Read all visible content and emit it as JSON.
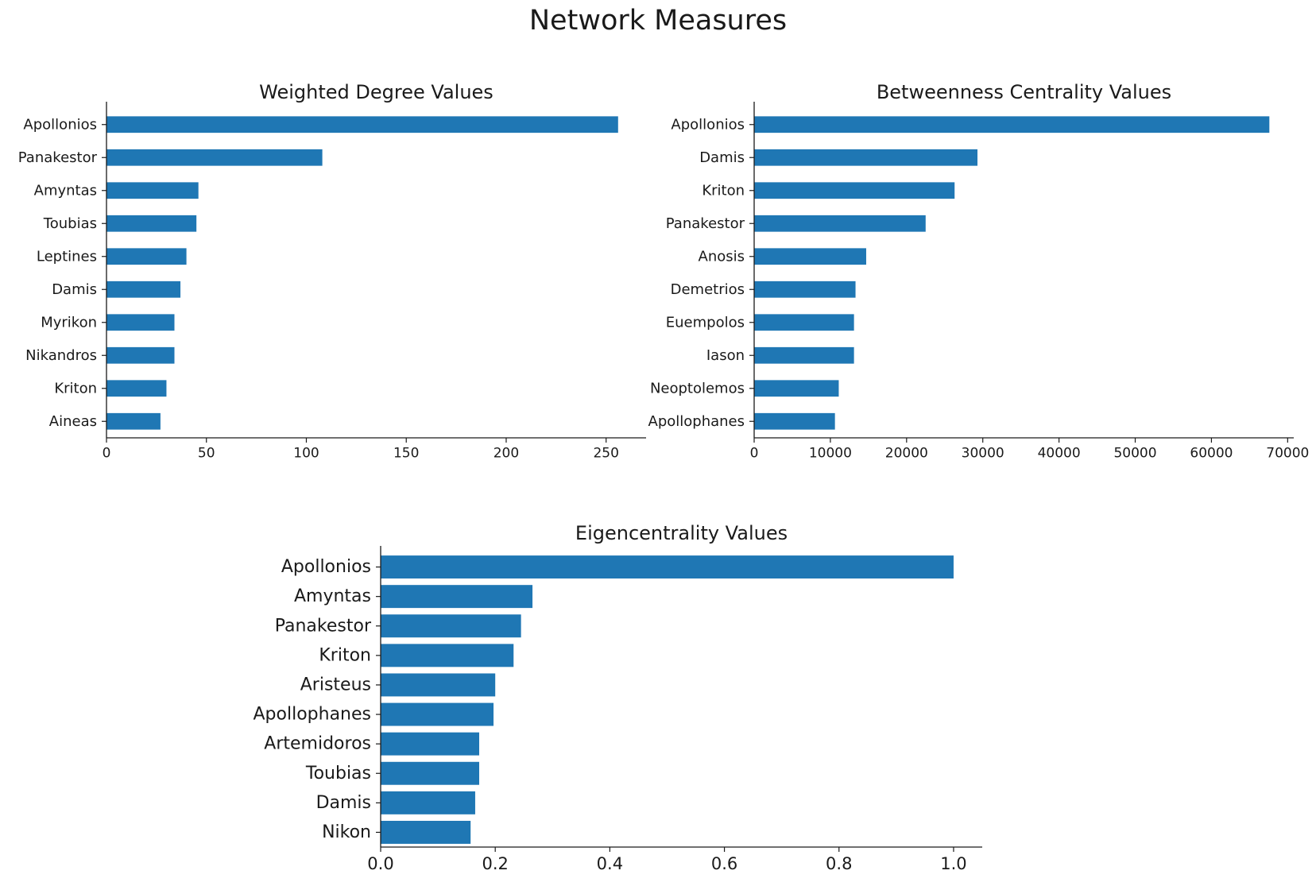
{
  "figure": {
    "title": "Network Measures"
  },
  "chart_data": [
    {
      "type": "bar",
      "orientation": "horizontal",
      "title": "Weighted Degree Values",
      "xlabel": "",
      "ylabel": "",
      "color": "#1f77b4",
      "categories": [
        "Apollonios",
        "Panakestor",
        "Amyntas",
        "Toubias",
        "Leptines",
        "Damis",
        "Myrikon",
        "Nikandros",
        "Kriton",
        "Aineas"
      ],
      "values": [
        256,
        108,
        46,
        45,
        40,
        37,
        34,
        34,
        30,
        27
      ],
      "xlim": [
        0,
        270
      ],
      "xticks": [
        0,
        50,
        100,
        150,
        200,
        250
      ],
      "grid": false
    },
    {
      "type": "bar",
      "orientation": "horizontal",
      "title": "Betweenness Centrality Values",
      "xlabel": "",
      "ylabel": "",
      "color": "#1f77b4",
      "categories": [
        "Apollonios",
        "Damis",
        "Kriton",
        "Panakestor",
        "Anosis",
        "Demetrios",
        "Euempolos",
        "Iason",
        "Neoptolemos",
        "Apollophanes"
      ],
      "values": [
        67600,
        29300,
        26300,
        22500,
        14700,
        13300,
        13100,
        13100,
        11100,
        10600
      ],
      "xlim": [
        0,
        70800
      ],
      "xticks": [
        0,
        10000,
        20000,
        30000,
        40000,
        50000,
        60000,
        70000
      ],
      "grid": false
    },
    {
      "type": "bar",
      "orientation": "horizontal",
      "title": "Eigencentrality Values",
      "xlabel": "",
      "ylabel": "",
      "color": "#1f77b4",
      "categories": [
        "Apollonios",
        "Amyntas",
        "Panakestor",
        "Kriton",
        "Aristeus",
        "Apollophanes",
        "Artemidoros",
        "Toubias",
        "Damis",
        "Nikon"
      ],
      "values": [
        1.0,
        0.265,
        0.245,
        0.232,
        0.2,
        0.197,
        0.172,
        0.172,
        0.165,
        0.157
      ],
      "xlim": [
        0,
        1.05
      ],
      "xticks": [
        0.0,
        0.2,
        0.4,
        0.6,
        0.8,
        1.0
      ],
      "xtick_labels": [
        "0.0",
        "0.2",
        "0.4",
        "0.6",
        "0.8",
        "1.0"
      ],
      "grid": false
    }
  ]
}
